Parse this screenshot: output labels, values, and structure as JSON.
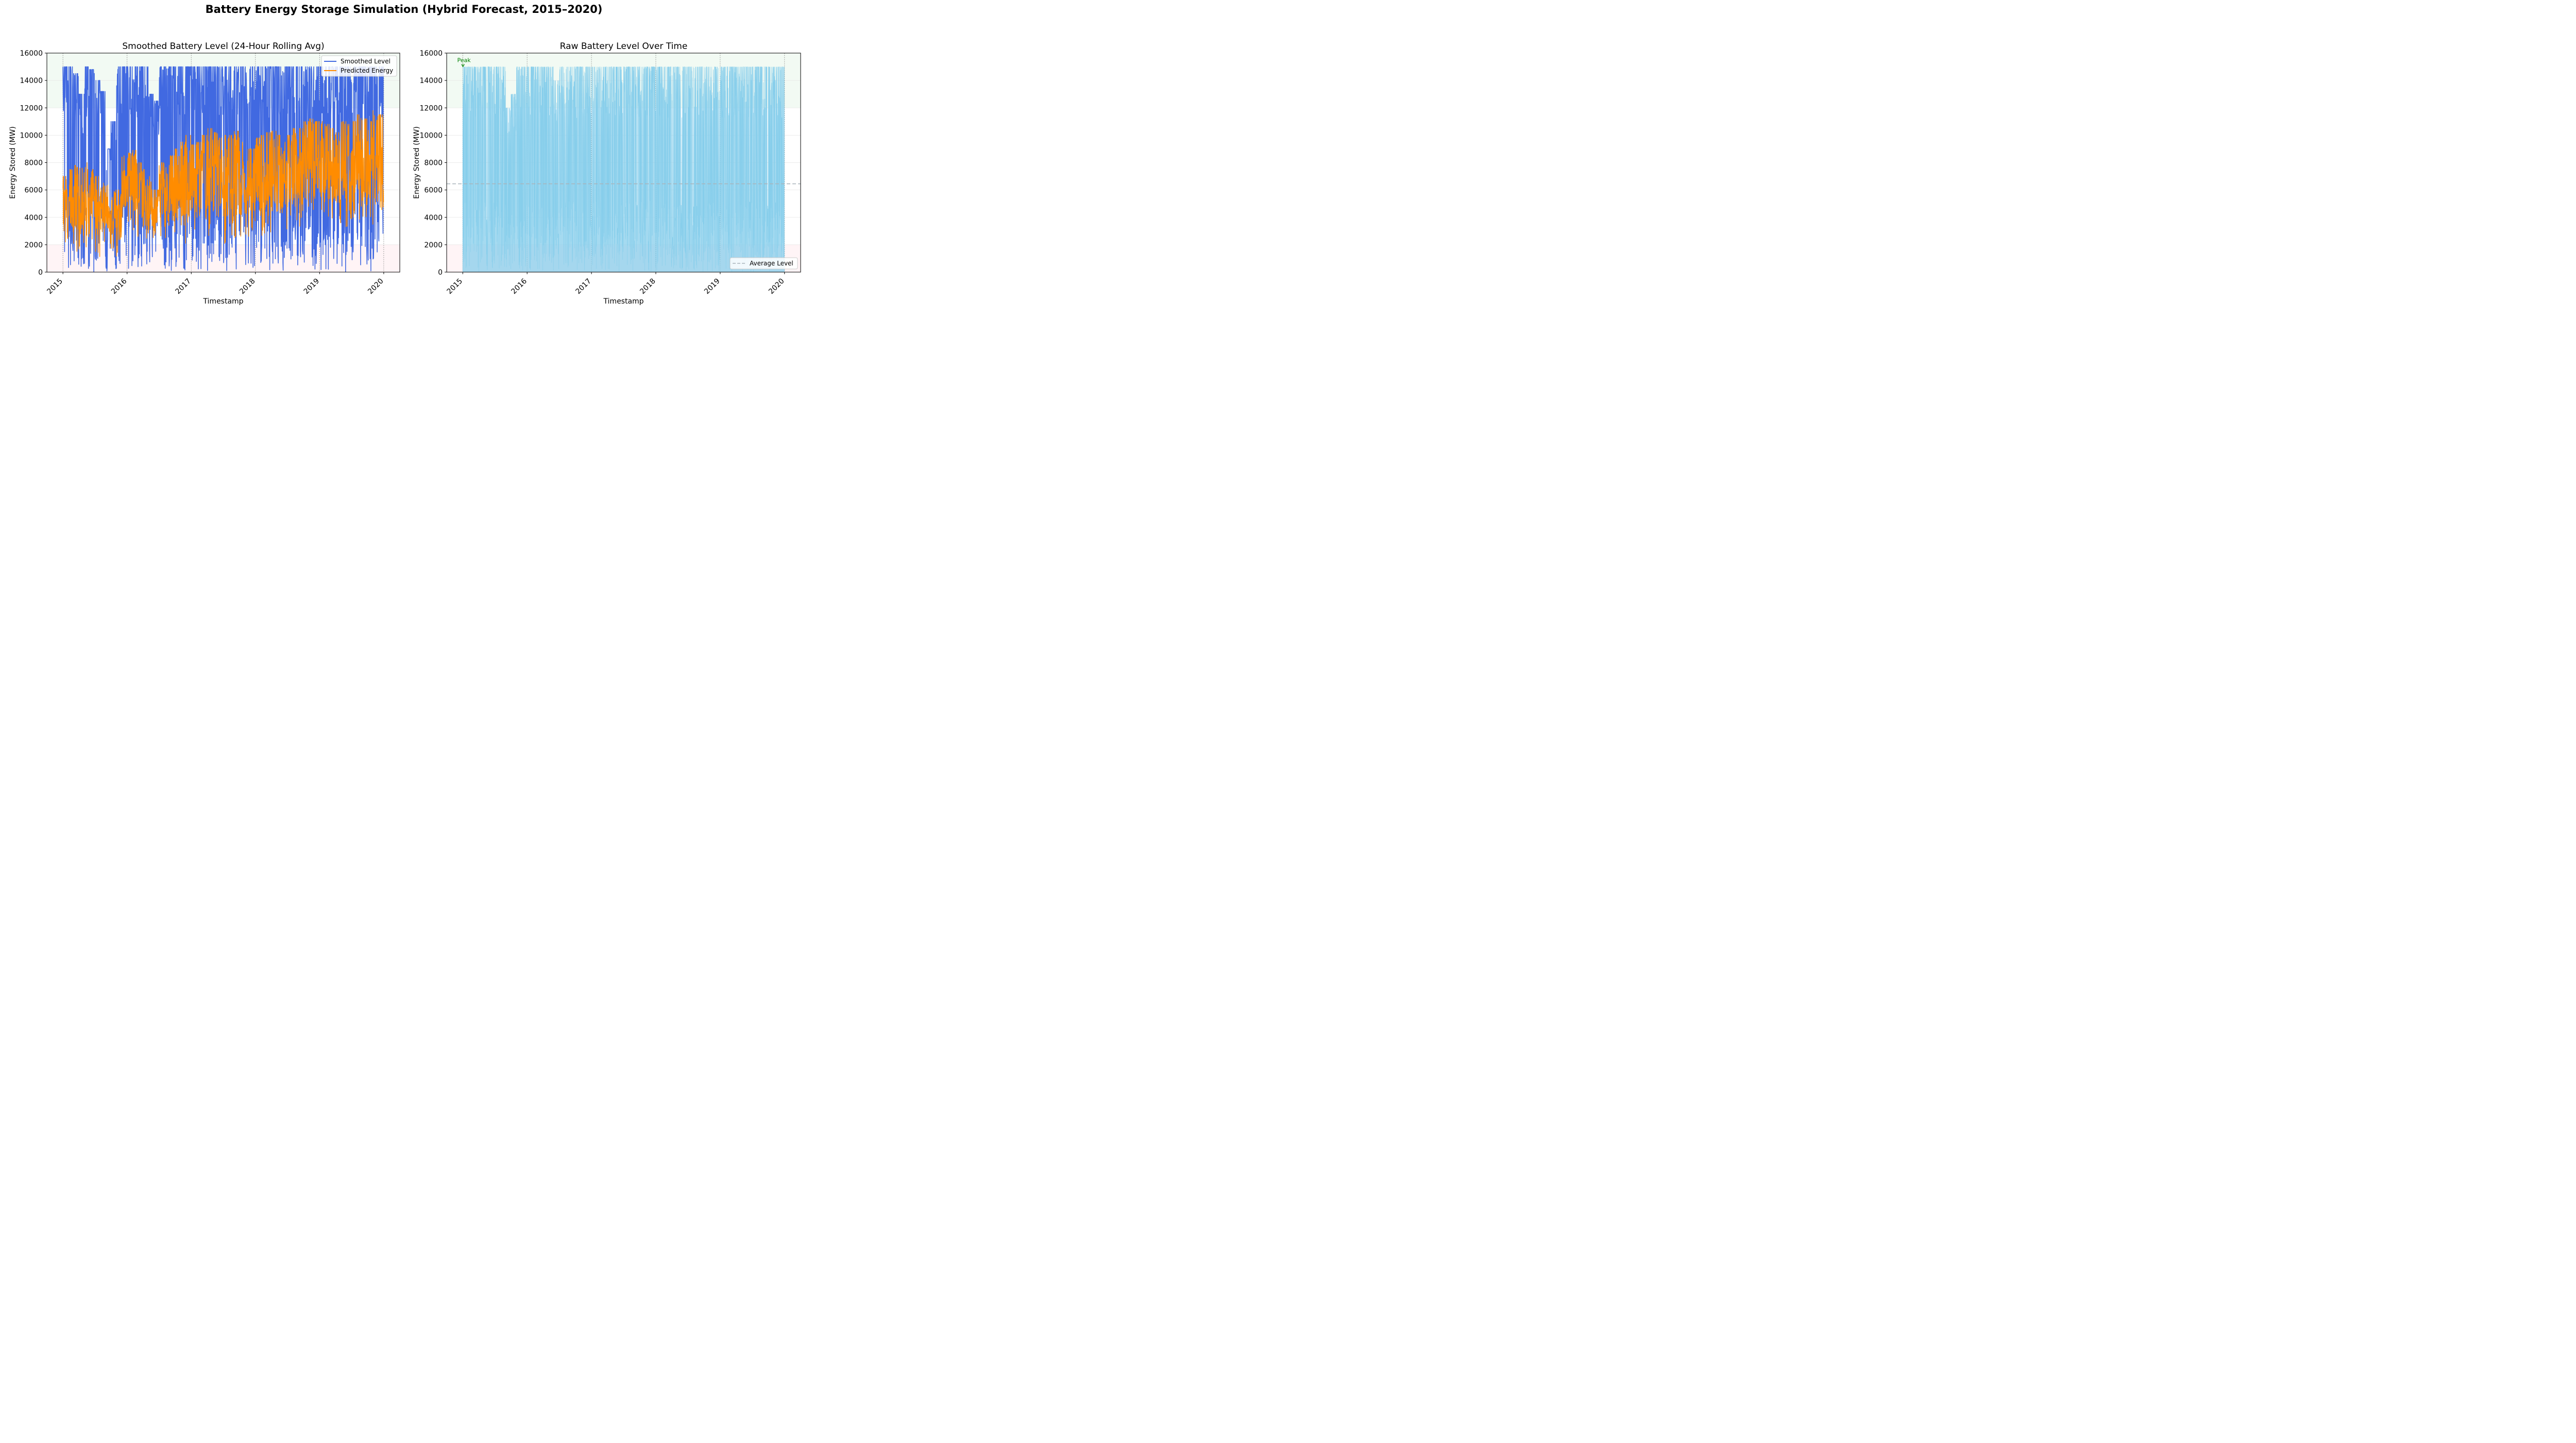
{
  "figure": {
    "suptitle": "Battery Energy Storage Simulation (Hybrid Forecast, 2015–2020)"
  },
  "chart_data": [
    {
      "type": "line",
      "title": "Smoothed Battery Level (24-Hour Rolling Avg)",
      "xlabel": "Timestamp",
      "ylabel": "Energy Stored (MW)",
      "xlim": [
        "2014-10-01",
        "2020-04-01"
      ],
      "ylim": [
        0,
        16000
      ],
      "yticks": [
        0,
        2000,
        4000,
        6000,
        8000,
        10000,
        12000,
        14000,
        16000
      ],
      "xticks": [
        "2015",
        "2016",
        "2017",
        "2018",
        "2019",
        "2020"
      ],
      "grid": true,
      "legend": {
        "position": "top-right",
        "entries": [
          "Smoothed Level",
          "Predicted Energy"
        ]
      },
      "bands": [
        {
          "from": 12000,
          "to": 16000,
          "color": "#e8f5e9"
        },
        {
          "from": 0,
          "to": 2000,
          "color": "#ffebee"
        }
      ],
      "vlines": [
        "2015",
        "2016",
        "2017",
        "2018",
        "2019",
        "2020"
      ],
      "colors": {
        "smoothed": "#4169e1",
        "predicted": "#ff8c00"
      },
      "series": [
        {
          "name": "Smoothed Level",
          "x": [
            "2015-01",
            "2015-02",
            "2015-03",
            "2015-04",
            "2015-05",
            "2015-06",
            "2015-07",
            "2015-08",
            "2015-09",
            "2015-10",
            "2015-11",
            "2015-12",
            "2016-01",
            "2016-02",
            "2016-03",
            "2016-04",
            "2016-05",
            "2016-06",
            "2016-07",
            "2016-08",
            "2016-09",
            "2016-10",
            "2016-11",
            "2016-12",
            "2017-01",
            "2017-02",
            "2017-03",
            "2017-04",
            "2017-05",
            "2017-06",
            "2017-07",
            "2017-08",
            "2017-09",
            "2017-10",
            "2017-11",
            "2017-12",
            "2018-01",
            "2018-02",
            "2018-03",
            "2018-04",
            "2018-05",
            "2018-06",
            "2018-07",
            "2018-08",
            "2018-09",
            "2018-10",
            "2018-11",
            "2018-12",
            "2019-01",
            "2019-02",
            "2019-03",
            "2019-04",
            "2019-05",
            "2019-06",
            "2019-07",
            "2019-08",
            "2019-09",
            "2019-10",
            "2019-11",
            "2019-12"
          ],
          "min": [
            0,
            0,
            0,
            0,
            0,
            0,
            0,
            0,
            0,
            0,
            0,
            0,
            0,
            0,
            0,
            0,
            500,
            800,
            0,
            0,
            0,
            0,
            0,
            0,
            0,
            0,
            0,
            0,
            0,
            0,
            0,
            0,
            0,
            0,
            0,
            0,
            0,
            0,
            0,
            0,
            0,
            0,
            0,
            0,
            0,
            500,
            0,
            0,
            0,
            0,
            0,
            0,
            0,
            0,
            0,
            0,
            0,
            0,
            0,
            0
          ],
          "max": [
            15000,
            15000,
            14500,
            13000,
            15000,
            14800,
            14000,
            13200,
            9000,
            11000,
            15000,
            15000,
            15000,
            15000,
            15000,
            15000,
            13000,
            12500,
            15000,
            15000,
            15000,
            15000,
            15000,
            15000,
            15000,
            15000,
            15000,
            15000,
            15000,
            15000,
            15000,
            15000,
            15000,
            15000,
            15000,
            15000,
            15000,
            15000,
            15000,
            15000,
            15000,
            15000,
            15000,
            15000,
            15000,
            15000,
            15000,
            15000,
            15000,
            15000,
            15000,
            15000,
            15000,
            15000,
            15000,
            15000,
            15000,
            15000,
            15000,
            15000
          ]
        },
        {
          "name": "Predicted Energy",
          "x": [
            "2015-01",
            "2015-02",
            "2015-03",
            "2015-04",
            "2015-05",
            "2015-06",
            "2015-07",
            "2015-08",
            "2015-09",
            "2015-10",
            "2015-11",
            "2015-12",
            "2016-01",
            "2016-02",
            "2016-03",
            "2016-04",
            "2016-05",
            "2016-06",
            "2016-07",
            "2016-08",
            "2016-09",
            "2016-10",
            "2016-11",
            "2016-12",
            "2017-01",
            "2017-02",
            "2017-03",
            "2017-04",
            "2017-05",
            "2017-06",
            "2017-07",
            "2017-08",
            "2017-09",
            "2017-10",
            "2017-11",
            "2017-12",
            "2018-01",
            "2018-02",
            "2018-03",
            "2018-04",
            "2018-05",
            "2018-06",
            "2018-07",
            "2018-08",
            "2018-09",
            "2018-10",
            "2018-11",
            "2018-12",
            "2019-01",
            "2019-02",
            "2019-03",
            "2019-04",
            "2019-05",
            "2019-06",
            "2019-07",
            "2019-08",
            "2019-09",
            "2019-10",
            "2019-11",
            "2019-12"
          ],
          "min": [
            500,
            2000,
            1500,
            1800,
            1500,
            2000,
            1000,
            2000,
            2000,
            1500,
            1000,
            4000,
            3500,
            3000,
            2500,
            2000,
            2500,
            2500,
            2500,
            2000,
            2000,
            2000,
            2000,
            2000,
            2500,
            2000,
            2500,
            2500,
            2500,
            2500,
            2000,
            2500,
            2500,
            2500,
            2500,
            2500,
            3000,
            2500,
            2500,
            2500,
            2500,
            3000,
            3000,
            3000,
            3000,
            3500,
            3500,
            3500,
            3500,
            3500,
            3500,
            3000,
            3000,
            3000,
            3500,
            3500,
            3000,
            3000,
            3000,
            4000
          ],
          "max": [
            7000,
            7500,
            7800,
            7600,
            8000,
            7500,
            7000,
            6500,
            6500,
            6000,
            6000,
            8500,
            8700,
            8900,
            8000,
            7500,
            7000,
            6000,
            8000,
            7800,
            8500,
            9000,
            9500,
            10000,
            9300,
            9500,
            10000,
            10500,
            10200,
            9800,
            10000,
            10000,
            10300,
            9500,
            9000,
            9000,
            9800,
            10000,
            10200,
            10300,
            10000,
            9500,
            10000,
            10500,
            10500,
            11000,
            11200,
            11000,
            11000,
            10800,
            10500,
            10200,
            11000,
            10800,
            11000,
            11500,
            11200,
            11000,
            11800,
            11500
          ]
        }
      ]
    },
    {
      "type": "area",
      "title": "Raw Battery Level Over Time",
      "xlabel": "Timestamp",
      "ylabel": "Energy Stored (MW)",
      "xlim": [
        "2014-10-01",
        "2020-04-01"
      ],
      "ylim": [
        0,
        16000
      ],
      "yticks": [
        0,
        2000,
        4000,
        6000,
        8000,
        10000,
        12000,
        14000,
        16000
      ],
      "xticks": [
        "2015",
        "2016",
        "2017",
        "2018",
        "2019",
        "2020"
      ],
      "grid": true,
      "legend": {
        "position": "bottom-right",
        "entries": [
          "Average Level"
        ]
      },
      "bands": [
        {
          "from": 12000,
          "to": 16000,
          "color": "#e8f5e9"
        },
        {
          "from": 0,
          "to": 2000,
          "color": "#ffebee"
        }
      ],
      "vlines": [
        "2015",
        "2016",
        "2017",
        "2018",
        "2019",
        "2020"
      ],
      "average_level": 6450,
      "annotation": {
        "text": "Peak",
        "x": "2015-01-02",
        "y": 15000,
        "color": "#008000"
      },
      "colors": {
        "fill": "#87ceeb",
        "average": "#a9b4bb"
      },
      "series": [
        {
          "name": "Raw Battery Level",
          "x": [
            "2015-01",
            "2015-02",
            "2015-03",
            "2015-04",
            "2015-05",
            "2015-06",
            "2015-07",
            "2015-08",
            "2015-09",
            "2015-10",
            "2015-11",
            "2015-12",
            "2016-01",
            "2016-02",
            "2016-03",
            "2016-04",
            "2016-05",
            "2016-06",
            "2016-07",
            "2016-08",
            "2016-09",
            "2016-10",
            "2016-11",
            "2016-12",
            "2017-01",
            "2017-02",
            "2017-03",
            "2017-04",
            "2017-05",
            "2017-06",
            "2017-07",
            "2017-08",
            "2017-09",
            "2017-10",
            "2017-11",
            "2017-12",
            "2018-01",
            "2018-02",
            "2018-03",
            "2018-04",
            "2018-05",
            "2018-06",
            "2018-07",
            "2018-08",
            "2018-09",
            "2018-10",
            "2018-11",
            "2018-12",
            "2019-01",
            "2019-02",
            "2019-03",
            "2019-04",
            "2019-05",
            "2019-06",
            "2019-07",
            "2019-08",
            "2019-09",
            "2019-10",
            "2019-11",
            "2019-12"
          ],
          "max": [
            15000,
            15000,
            15000,
            15000,
            15000,
            15000,
            15000,
            15000,
            12000,
            13000,
            15000,
            15000,
            15000,
            15000,
            15000,
            15000,
            15000,
            14000,
            15000,
            15000,
            15000,
            15000,
            15000,
            15000,
            15000,
            15000,
            15000,
            15000,
            15000,
            15000,
            15000,
            15000,
            15000,
            15000,
            15000,
            15000,
            15000,
            15000,
            15000,
            15000,
            15000,
            15000,
            15000,
            15000,
            15000,
            15000,
            15000,
            15000,
            15000,
            15000,
            15000,
            15000,
            15000,
            15000,
            15000,
            15000,
            15000,
            15000,
            15000,
            15000
          ],
          "min": [
            0,
            0,
            0,
            0,
            0,
            0,
            0,
            0,
            0,
            0,
            0,
            0,
            0,
            0,
            0,
            0,
            0,
            0,
            0,
            0,
            0,
            0,
            0,
            0,
            0,
            0,
            0,
            0,
            0,
            0,
            0,
            0,
            0,
            0,
            0,
            0,
            0,
            0,
            0,
            0,
            0,
            0,
            0,
            0,
            0,
            0,
            0,
            0,
            0,
            0,
            0,
            0,
            0,
            0,
            0,
            0,
            0,
            0,
            0,
            0
          ]
        }
      ]
    }
  ]
}
